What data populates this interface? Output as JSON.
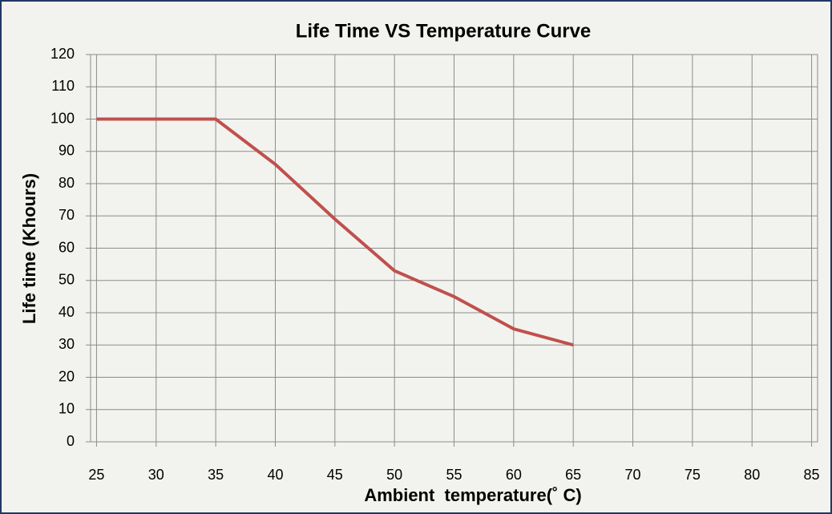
{
  "chart_data": {
    "type": "line",
    "title": "Life Time VS Temperature Curve",
    "xlabel": "Ambient  temperature(˚ C)",
    "ylabel": "Life time (Khours)",
    "x": [
      25,
      35,
      40,
      45,
      50,
      55,
      60,
      65
    ],
    "series": [
      {
        "name": "Life time",
        "color": "#c0504d",
        "values": [
          100,
          100,
          86,
          69,
          53,
          45,
          35,
          30
        ]
      }
    ],
    "xlim": [
      24.5,
      85.5
    ],
    "xticks": [
      25,
      30,
      35,
      40,
      45,
      50,
      55,
      60,
      65,
      70,
      75,
      80,
      85
    ],
    "ylim": [
      0,
      120
    ],
    "yticks": [
      0,
      10,
      20,
      30,
      40,
      50,
      60,
      70,
      80,
      90,
      100,
      110,
      120
    ],
    "grid": true
  }
}
